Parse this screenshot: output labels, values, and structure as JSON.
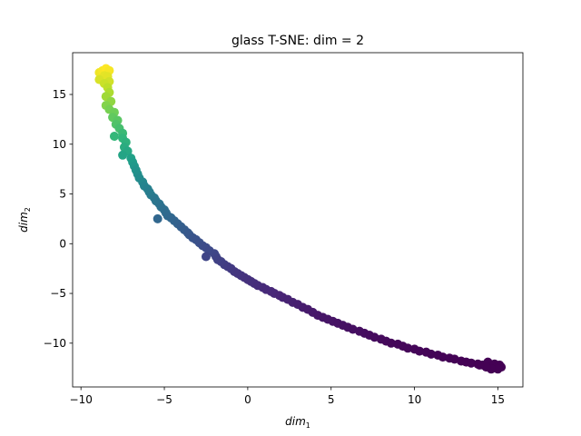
{
  "chart_data": {
    "type": "scatter",
    "title": "glass T-SNE: dim = 2",
    "xlabel": {
      "base": "dim",
      "sub": "1"
    },
    "ylabel": {
      "base": "dim",
      "sub": "2"
    },
    "xlim": [
      -10.5,
      16.5
    ],
    "ylim": [
      -14.4,
      19.2
    ],
    "xticks": [
      -10,
      -5,
      0,
      5,
      10,
      15
    ],
    "yticks": [
      -10,
      -5,
      0,
      5,
      10,
      15
    ],
    "grid": false,
    "legend": "none",
    "colormap": "viridis",
    "point_color": "#440154",
    "points": [
      [
        -8.9,
        17.2
      ],
      [
        -8.7,
        17.4
      ],
      [
        -8.5,
        17.6
      ],
      [
        -8.3,
        17.4
      ],
      [
        -8.6,
        16.9
      ],
      [
        -8.9,
        16.5
      ],
      [
        -8.4,
        16.8
      ],
      [
        -8.3,
        16.3
      ],
      [
        -8.6,
        16.1
      ],
      [
        -8.4,
        15.7
      ],
      [
        -8.3,
        15.2
      ],
      [
        -8.5,
        14.8
      ],
      [
        -8.2,
        14.3
      ],
      [
        -8.5,
        13.9
      ],
      [
        -8.3,
        13.5
      ],
      [
        -8.0,
        13.2
      ],
      [
        -8.1,
        12.7
      ],
      [
        -7.8,
        12.4
      ],
      [
        -7.9,
        12.0
      ],
      [
        -7.7,
        11.6
      ],
      [
        -7.5,
        11.1
      ],
      [
        -8.0,
        10.8
      ],
      [
        -7.5,
        10.6
      ],
      [
        -7.3,
        10.2
      ],
      [
        -7.4,
        9.7
      ],
      [
        -7.2,
        9.3
      ],
      [
        -7.5,
        8.9
      ],
      [
        -7.0,
        8.6
      ],
      [
        -6.9,
        8.2
      ],
      [
        -6.8,
        7.8
      ],
      [
        -6.7,
        7.4
      ],
      [
        -6.6,
        7.0
      ],
      [
        -6.5,
        6.6
      ],
      [
        -6.3,
        6.2
      ],
      [
        -6.2,
        5.8
      ],
      [
        -6.0,
        5.5
      ],
      [
        -5.9,
        5.2
      ],
      [
        -5.8,
        4.9
      ],
      [
        -5.6,
        4.6
      ],
      [
        -5.5,
        4.3
      ],
      [
        -5.3,
        4.0
      ],
      [
        -5.2,
        3.7
      ],
      [
        -5.0,
        3.4
      ],
      [
        -4.9,
        3.1
      ],
      [
        -4.8,
        2.8
      ],
      [
        -4.6,
        2.6
      ],
      [
        -4.4,
        2.3
      ],
      [
        -5.4,
        2.5
      ],
      [
        -4.2,
        2.0
      ],
      [
        -4.0,
        1.7
      ],
      [
        -3.8,
        1.4
      ],
      [
        -3.6,
        1.1
      ],
      [
        -3.5,
        0.9
      ],
      [
        -3.3,
        0.6
      ],
      [
        -3.1,
        0.4
      ],
      [
        -2.9,
        0.1
      ],
      [
        -2.7,
        -0.2
      ],
      [
        -2.5,
        -0.4
      ],
      [
        -2.3,
        -0.7
      ],
      [
        -2.5,
        -1.3
      ],
      [
        -2.0,
        -1.0
      ],
      [
        -1.9,
        -1.3
      ],
      [
        -1.8,
        -1.6
      ],
      [
        -1.6,
        -1.8
      ],
      [
        -1.4,
        -2.1
      ],
      [
        -1.2,
        -2.3
      ],
      [
        -1.0,
        -2.5
      ],
      [
        -0.8,
        -2.8
      ],
      [
        -0.6,
        -3.0
      ],
      [
        -0.4,
        -3.2
      ],
      [
        -0.2,
        -3.4
      ],
      [
        0.0,
        -3.6
      ],
      [
        0.2,
        -3.8
      ],
      [
        0.4,
        -4.0
      ],
      [
        0.6,
        -4.2
      ],
      [
        0.9,
        -4.4
      ],
      [
        1.1,
        -4.6
      ],
      [
        1.4,
        -4.8
      ],
      [
        1.6,
        -5.0
      ],
      [
        1.9,
        -5.2
      ],
      [
        2.1,
        -5.4
      ],
      [
        2.4,
        -5.6
      ],
      [
        2.7,
        -5.9
      ],
      [
        3.0,
        -6.1
      ],
      [
        3.3,
        -6.4
      ],
      [
        3.6,
        -6.6
      ],
      [
        3.9,
        -6.9
      ],
      [
        4.2,
        -7.2
      ],
      [
        4.5,
        -7.4
      ],
      [
        4.8,
        -7.6
      ],
      [
        5.1,
        -7.8
      ],
      [
        5.4,
        -8.0
      ],
      [
        5.7,
        -8.2
      ],
      [
        6.0,
        -8.4
      ],
      [
        6.3,
        -8.6
      ],
      [
        6.7,
        -8.8
      ],
      [
        7.0,
        -9.0
      ],
      [
        7.3,
        -9.2
      ],
      [
        7.6,
        -9.4
      ],
      [
        8.0,
        -9.6
      ],
      [
        8.3,
        -9.8
      ],
      [
        8.6,
        -10.0
      ],
      [
        9.0,
        -10.1
      ],
      [
        9.3,
        -10.3
      ],
      [
        9.6,
        -10.5
      ],
      [
        10.0,
        -10.6
      ],
      [
        10.3,
        -10.8
      ],
      [
        10.7,
        -10.9
      ],
      [
        11.0,
        -11.1
      ],
      [
        11.4,
        -11.2
      ],
      [
        11.7,
        -11.4
      ],
      [
        12.1,
        -11.5
      ],
      [
        12.4,
        -11.6
      ],
      [
        12.8,
        -11.8
      ],
      [
        13.1,
        -11.9
      ],
      [
        13.4,
        -12.0
      ],
      [
        13.8,
        -12.1
      ],
      [
        14.1,
        -12.2
      ],
      [
        14.4,
        -11.9
      ],
      [
        14.6,
        -12.3
      ],
      [
        14.8,
        -12.1
      ],
      [
        14.9,
        -12.5
      ],
      [
        15.1,
        -12.2
      ],
      [
        15.2,
        -12.4
      ],
      [
        15.0,
        -12.6
      ],
      [
        14.6,
        -12.6
      ],
      [
        14.3,
        -12.4
      ],
      [
        13.9,
        -12.2
      ]
    ]
  }
}
